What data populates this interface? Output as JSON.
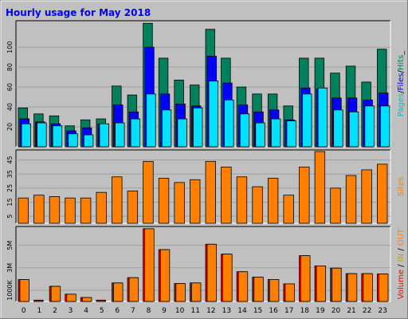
{
  "chart_data": [
    {
      "type": "bar",
      "title": "Hourly usage for May 2018",
      "ylabel_parts": [
        "Pages",
        "/",
        "Files",
        "/",
        "Hits",
        "_"
      ],
      "ylabel_colors": [
        "#00c0c0",
        "#000000",
        "#0000ff",
        "#000000",
        "#00805c",
        "#000000"
      ],
      "yticks": [
        20,
        40,
        60,
        80,
        100
      ],
      "ylim": [
        0,
        125
      ],
      "categories": [
        "0",
        "1",
        "2",
        "3",
        "4",
        "5",
        "6",
        "7",
        "8",
        "9",
        "10",
        "11",
        "12",
        "13",
        "14",
        "15",
        "16",
        "17",
        "18",
        "19",
        "20",
        "21",
        "22",
        "23"
      ],
      "series": [
        {
          "name": "Hits",
          "color": "#00805c",
          "values": [
            39,
            33,
            31,
            21,
            27,
            28,
            61,
            52,
            124,
            89,
            67,
            62,
            118,
            89,
            60,
            53,
            53,
            41,
            89,
            89,
            74,
            81,
            65,
            98
          ]
        },
        {
          "name": "Files",
          "color": "#0000ff",
          "values": [
            28,
            25,
            23,
            16,
            19,
            23,
            42,
            35,
            100,
            53,
            43,
            41,
            91,
            64,
            42,
            35,
            37,
            27,
            59,
            58,
            49,
            49,
            47,
            54
          ]
        },
        {
          "name": "Pages",
          "color": "#00e0ff",
          "values": [
            23,
            24,
            21,
            13,
            12,
            23,
            24,
            28,
            53,
            37,
            28,
            39,
            66,
            47,
            33,
            24,
            28,
            26,
            53,
            59,
            37,
            35,
            41,
            41
          ]
        }
      ]
    },
    {
      "type": "bar",
      "ylabel_parts": [
        "Sites"
      ],
      "ylabel_colors": [
        "#ff8000"
      ],
      "yticks": [
        5,
        15,
        25,
        35,
        45
      ],
      "ylim": [
        0,
        51
      ],
      "categories": [
        "0",
        "1",
        "2",
        "3",
        "4",
        "5",
        "6",
        "7",
        "8",
        "9",
        "10",
        "11",
        "12",
        "13",
        "14",
        "15",
        "16",
        "17",
        "18",
        "19",
        "20",
        "21",
        "22",
        "23"
      ],
      "series": [
        {
          "name": "Sites",
          "color": "#ff8000",
          "values": [
            18,
            20,
            19,
            18,
            18,
            22,
            33,
            23,
            44,
            32,
            29,
            31,
            44,
            40,
            33,
            26,
            32,
            20,
            40,
            51,
            25,
            34,
            38,
            42
          ]
        }
      ]
    },
    {
      "type": "bar",
      "ylabel_parts": [
        "Volume",
        " / ",
        "IN",
        " / ",
        "OUT"
      ],
      "ylabel_colors": [
        "#ff0000",
        "#000000",
        "#c8a000",
        "#000000",
        "#ff8000"
      ],
      "yticks": [
        1000,
        3000,
        5000
      ],
      "ytick_labels": [
        "1000K",
        "3M",
        "5M"
      ],
      "ylim": [
        0,
        6540
      ],
      "categories": [
        "0",
        "1",
        "2",
        "3",
        "4",
        "5",
        "6",
        "7",
        "8",
        "9",
        "10",
        "11",
        "12",
        "13",
        "14",
        "15",
        "16",
        "17",
        "18",
        "19",
        "20",
        "21",
        "22",
        "23"
      ],
      "series": [
        {
          "name": "Volume",
          "color": "#ff0000",
          "values": [
            1950,
            120,
            1350,
            650,
            350,
            120,
            1650,
            2120,
            6480,
            4620,
            1600,
            1650,
            5100,
            4220,
            2650,
            2170,
            1960,
            1570,
            4080,
            3170,
            2970,
            2480,
            2480,
            2450
          ]
        },
        {
          "name": "OUT",
          "color": "#ff8000",
          "values": [
            1950,
            0,
            1350,
            650,
            350,
            0,
            1650,
            2120,
            6480,
            4620,
            1600,
            1650,
            5100,
            4220,
            2650,
            2170,
            1960,
            1570,
            4080,
            3170,
            2970,
            2480,
            2480,
            2450
          ]
        }
      ]
    }
  ]
}
